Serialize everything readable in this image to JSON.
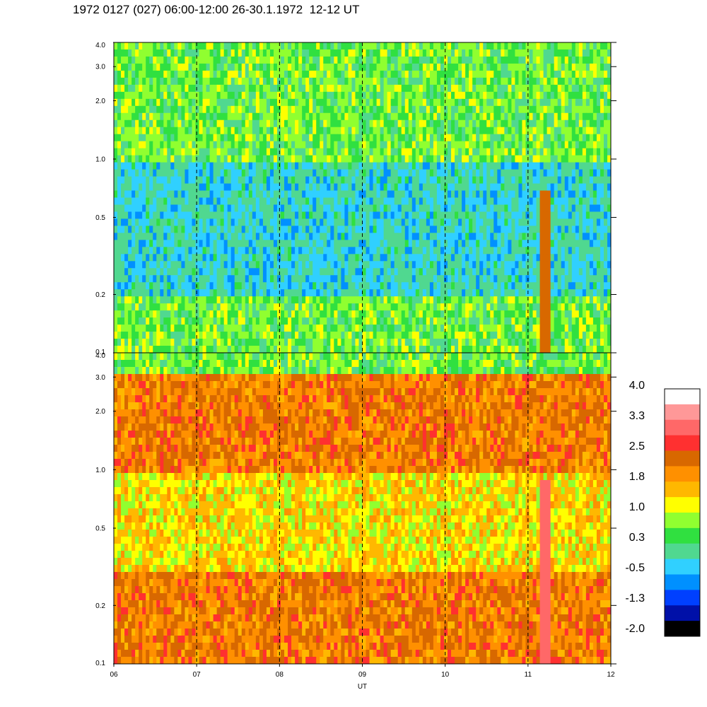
{
  "title": "1972 0127 (027) 06:00-12:00 26-30.1.1972  12-12 UT",
  "colors": {
    "scale": [
      "#000000",
      "#0010a8",
      "#0040ff",
      "#0090ff",
      "#30d0ff",
      "#50d890",
      "#30e040",
      "#90ff30",
      "#ffff00",
      "#ffb800",
      "#ff9000",
      "#d86800",
      "#ff3030",
      "#ff6868",
      "#ff9898",
      "#ffffff"
    ]
  },
  "chart_data": [
    {
      "type": "heatmap",
      "panel": "top",
      "x_ticks": [
        "06",
        "07",
        "08",
        "09",
        "10",
        "11",
        "12"
      ],
      "y_ticks": [
        "0.1",
        "0.2",
        "0.5",
        "1.0",
        "2.0",
        "3.0",
        "4.0"
      ],
      "x_range": [
        6,
        12
      ],
      "y_range": [
        0.1,
        4.0
      ],
      "y_scale": "log",
      "dashed_verticals_at": [
        7,
        8,
        9,
        10,
        11
      ],
      "dominant_levels": {
        "4.0-1.0": 0.3,
        "1.0-0.2": -0.5,
        "0.2-0.1": 0.3
      },
      "features": [
        {
          "x": 11.2,
          "y_range": [
            0.1,
            0.7
          ],
          "level": 1.8
        }
      ]
    },
    {
      "type": "heatmap",
      "panel": "bottom",
      "x_ticks": [
        "06",
        "07",
        "08",
        "09",
        "10",
        "11",
        "12"
      ],
      "y_ticks": [
        "0.1",
        "0.2",
        "0.5",
        "1.0",
        "2.0",
        "3.0",
        "4.0"
      ],
      "x_range": [
        6,
        12
      ],
      "y_range": [
        0.1,
        4.0
      ],
      "y_scale": "log",
      "xlabel": "UT",
      "dashed_verticals_at": [
        7,
        8,
        9,
        10,
        11
      ],
      "dominant_levels": {
        "4.0-3.0": 0.3,
        "3.0-1.0": 1.8,
        "1.0-0.3": 1.0,
        "0.3-0.1": 1.8
      },
      "features": [
        {
          "x": 11.2,
          "y_range": [
            0.1,
            0.9
          ],
          "level": 2.5
        }
      ]
    },
    {
      "type": "colorbar",
      "tick_labels": [
        "4.0",
        "3.3",
        "2.5",
        "1.8",
        "1.0",
        "0.3",
        "-0.5",
        "-1.3",
        "-2.0"
      ]
    }
  ]
}
